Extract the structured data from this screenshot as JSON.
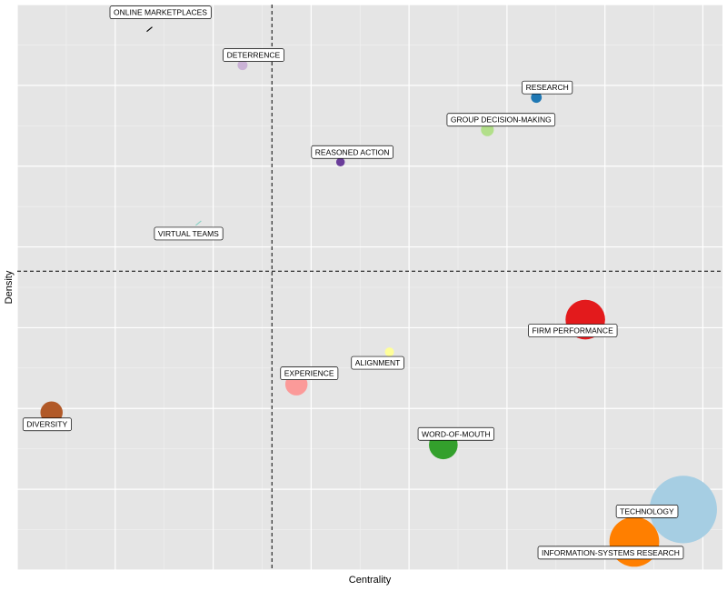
{
  "chart_data": {
    "type": "scatter",
    "title": "",
    "xlabel": "Centrality",
    "ylabel": "Density",
    "xlim": [
      0,
      7.2
    ],
    "ylim": [
      0,
      7
    ],
    "grid": true,
    "tick_labels_shown": false,
    "reference_lines": {
      "x": 2.6,
      "y": 3.7
    },
    "points": [
      {
        "label": "ONLINE MARKETPLACES",
        "x": 1.35,
        "y": 6.7,
        "size": 0.3,
        "color": "#000000"
      },
      {
        "label": "DETERRENCE",
        "x": 2.3,
        "y": 6.25,
        "size": 1.2,
        "color": "#cab2d6"
      },
      {
        "label": "RESEARCH",
        "x": 5.3,
        "y": 5.85,
        "size": 1.4,
        "color": "#1f78b4"
      },
      {
        "label": "GROUP DECISION-MAKING",
        "x": 4.8,
        "y": 5.45,
        "size": 2,
        "color": "#b2df8a"
      },
      {
        "label": "REASONED ACTION",
        "x": 3.3,
        "y": 5.05,
        "size": 0.9,
        "color": "#6a3d9a"
      },
      {
        "label": "VIRTUAL TEAMS",
        "x": 1.85,
        "y": 4.3,
        "size": 0.2,
        "color": "#8dd3c7"
      },
      {
        "label": "FIRM PERFORMANCE",
        "x": 5.8,
        "y": 3.1,
        "size": 19,
        "color": "#e31a1c"
      },
      {
        "label": "ALIGNMENT",
        "x": 3.8,
        "y": 2.7,
        "size": 1,
        "color": "#ffff99"
      },
      {
        "label": "EXPERIENCE",
        "x": 2.85,
        "y": 2.3,
        "size": 6,
        "color": "#fb9a99"
      },
      {
        "label": "DIVERSITY",
        "x": 0.35,
        "y": 1.95,
        "size": 6,
        "color": "#b15928"
      },
      {
        "label": "WORD-OF-MOUTH",
        "x": 4.35,
        "y": 1.55,
        "size": 10,
        "color": "#33a02c"
      },
      {
        "label": "TECHNOLOGY",
        "x": 6.8,
        "y": 0.75,
        "size": 55,
        "color": "#a6cee3"
      },
      {
        "label": "INFORMATION-SYSTEMS RESEARCH",
        "x": 6.3,
        "y": 0.35,
        "size": 30,
        "color": "#ff7f00"
      }
    ]
  }
}
